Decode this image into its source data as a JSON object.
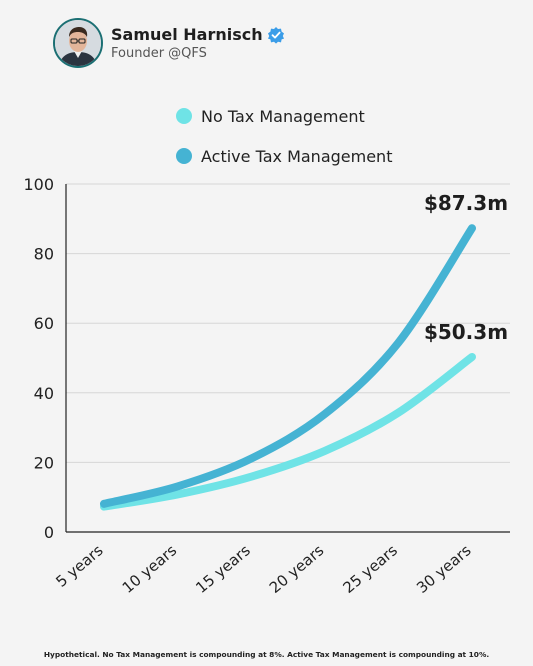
{
  "profile": {
    "name": "Samuel Harnisch",
    "handle": "Founder @QFS",
    "verified_color": "#3b9de8"
  },
  "chart_data": {
    "type": "line",
    "x": [
      "5 years",
      "10 years",
      "15 years",
      "20 years",
      "25 years",
      "30 years"
    ],
    "series": [
      {
        "name": "No Tax Management",
        "color": "#6fe3e6",
        "values": [
          7.3,
          10.8,
          15.9,
          23.3,
          34.3,
          50.3
        ],
        "end_label": "$50.3m"
      },
      {
        "name": "Active Tax Management",
        "color": "#45b3d3",
        "values": [
          8.1,
          13.1,
          21.1,
          33.9,
          54.4,
          87.3
        ],
        "end_label": "$87.3m"
      }
    ],
    "ylim": [
      0,
      100
    ],
    "yticks": [
      0,
      20,
      40,
      60,
      80,
      100
    ],
    "grid": true,
    "legend": "top-center"
  },
  "footnote": "Hypothetical. No Tax Management is compounding at 8%. Active Tax Management is compounding at 10%."
}
